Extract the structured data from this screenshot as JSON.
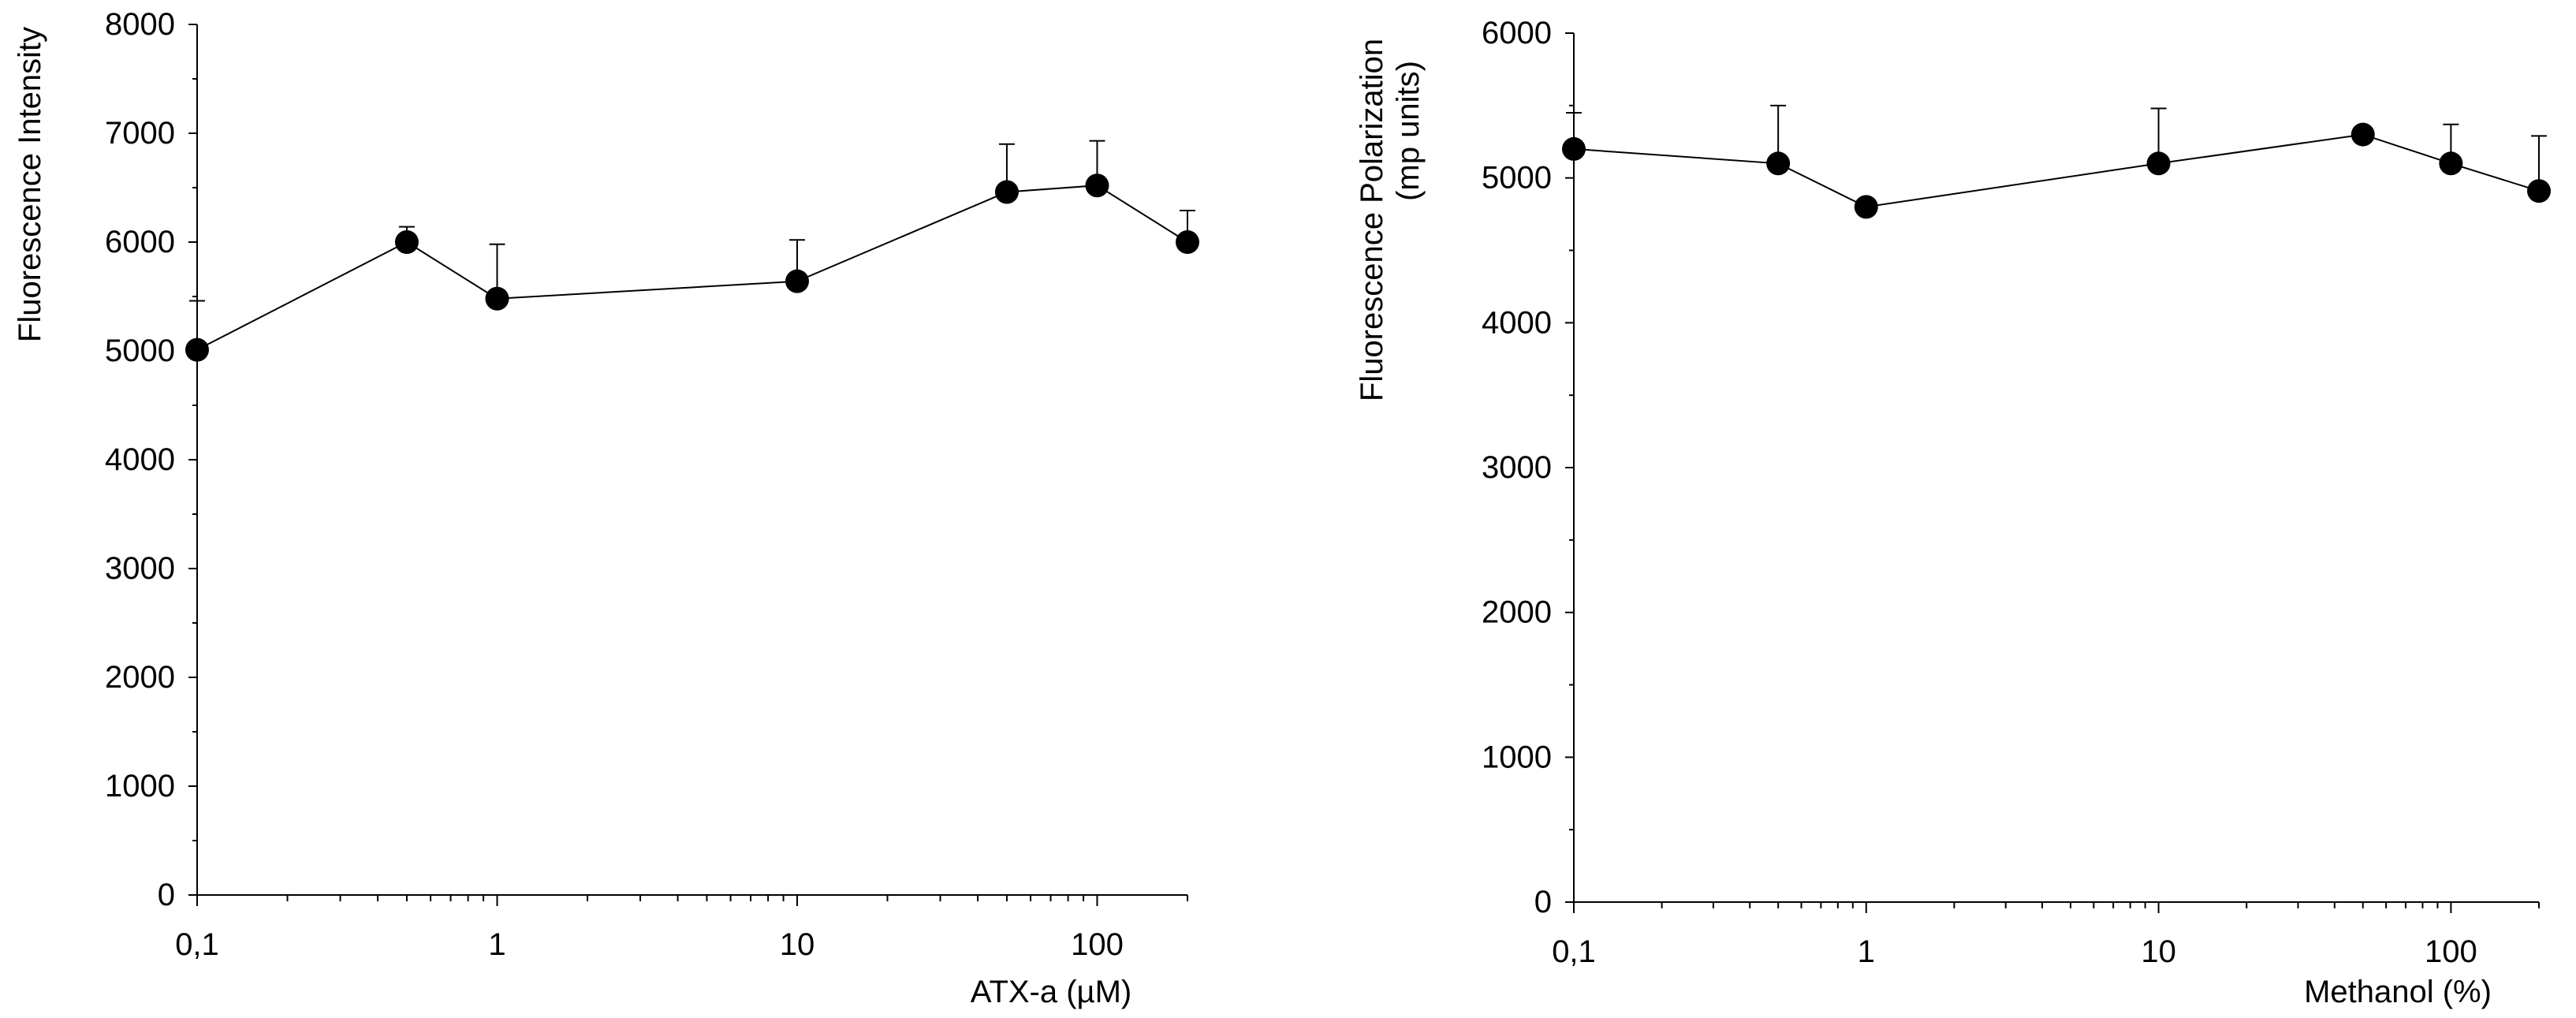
{
  "style": {
    "ink": "#000000",
    "background": "#ffffff"
  },
  "chart_data": [
    {
      "type": "line",
      "x_scale": "log",
      "grid": false,
      "x": [
        0.1,
        0.5,
        1,
        10,
        50,
        100,
        200
      ],
      "series": [
        {
          "values": [
            5010,
            6000,
            5480,
            5640,
            6460,
            6520,
            6000
          ],
          "errors": [
            450,
            140,
            500,
            380,
            440,
            410,
            290
          ]
        }
      ],
      "xlabel": "ATX-a (µM)",
      "ylabel": [
        "Fluorescence Intensity"
      ],
      "xlim": [
        0.1,
        200
      ],
      "ylim": [
        0,
        8000
      ],
      "xticks": [
        0.1,
        1,
        10,
        100
      ],
      "xtick_labels": [
        "0,1",
        "1",
        "10",
        "100"
      ],
      "yticks": [
        0,
        1000,
        2000,
        3000,
        4000,
        5000,
        6000,
        7000,
        8000
      ],
      "ytick_labels": [
        "0",
        "1000",
        "2000",
        "3000",
        "4000",
        "5000",
        "6000",
        "7000",
        "8000"
      ]
    },
    {
      "type": "line",
      "x_scale": "log",
      "grid": false,
      "x": [
        0.1,
        0.5,
        1,
        10,
        50,
        100,
        200
      ],
      "series": [
        {
          "values": [
            5200,
            5100,
            4800,
            5100,
            5300,
            5100,
            4910
          ],
          "errors": [
            250,
            400,
            0,
            380,
            0,
            270,
            380
          ]
        }
      ],
      "xlabel": "Methanol (%)",
      "ylabel": [
        "Fluorescence Polarization",
        "(mp units)"
      ],
      "xlim": [
        0.1,
        200
      ],
      "ylim": [
        0,
        6000
      ],
      "xticks": [
        0.1,
        1,
        10,
        100
      ],
      "xtick_labels": [
        "0,1",
        "1",
        "10",
        "100"
      ],
      "yticks": [
        0,
        1000,
        2000,
        3000,
        4000,
        5000,
        6000
      ],
      "ytick_labels": [
        "0",
        "1000",
        "2000",
        "3000",
        "4000",
        "5000",
        "6000"
      ]
    }
  ]
}
